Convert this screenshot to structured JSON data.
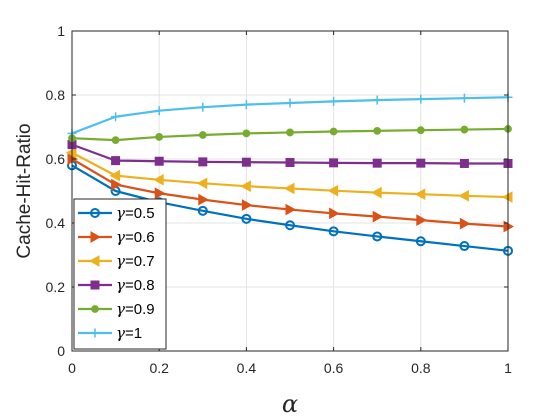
{
  "chart_data": {
    "type": "line",
    "xlabel": "α",
    "ylabel": "Cache-Hit-Ratio",
    "xlim": [
      0,
      1
    ],
    "ylim": [
      0,
      1
    ],
    "xticks": [
      "0",
      "0.2",
      "0.4",
      "0.6",
      "0.8",
      "1"
    ],
    "yticks": [
      "0",
      "0.2",
      "0.4",
      "0.6",
      "0.8",
      "1"
    ],
    "grid": true,
    "legend_position": "bottom-left",
    "x": [
      0,
      0.1,
      0.2,
      0.3,
      0.4,
      0.5,
      0.6,
      0.7,
      0.8,
      0.9,
      1.0
    ],
    "series": [
      {
        "name": "γ=0.5",
        "gamma": "γ",
        "value_text": "=0.5",
        "color": "#0072BD",
        "marker": "circle",
        "values": [
          0.58,
          0.5,
          0.465,
          0.438,
          0.413,
          0.393,
          0.374,
          0.358,
          0.343,
          0.328,
          0.313
        ]
      },
      {
        "name": "γ=0.6",
        "gamma": "γ",
        "value_text": "=0.6",
        "color": "#D95319",
        "marker": "triangle-right",
        "values": [
          0.6,
          0.52,
          0.493,
          0.473,
          0.456,
          0.442,
          0.43,
          0.42,
          0.409,
          0.398,
          0.389
        ]
      },
      {
        "name": "γ=0.7",
        "gamma": "γ",
        "value_text": "=0.7",
        "color": "#EDB120",
        "marker": "triangle-left",
        "values": [
          0.62,
          0.548,
          0.535,
          0.524,
          0.515,
          0.508,
          0.501,
          0.495,
          0.49,
          0.485,
          0.481
        ]
      },
      {
        "name": "γ=0.8",
        "gamma": "γ",
        "value_text": "=0.8",
        "color": "#7E2F8E",
        "marker": "square",
        "values": [
          0.645,
          0.595,
          0.593,
          0.591,
          0.59,
          0.589,
          0.588,
          0.587,
          0.587,
          0.586,
          0.586
        ]
      },
      {
        "name": "γ=0.9",
        "gamma": "γ",
        "value_text": "=0.9",
        "color": "#77AC30",
        "marker": "dot",
        "values": [
          0.665,
          0.659,
          0.669,
          0.675,
          0.68,
          0.683,
          0.686,
          0.688,
          0.69,
          0.692,
          0.694
        ]
      },
      {
        "name": "γ=1",
        "gamma": "γ",
        "value_text": "=1",
        "color": "#4DBEEE",
        "marker": "plus",
        "values": [
          0.68,
          0.732,
          0.751,
          0.762,
          0.77,
          0.775,
          0.78,
          0.784,
          0.787,
          0.79,
          0.793
        ]
      }
    ]
  }
}
